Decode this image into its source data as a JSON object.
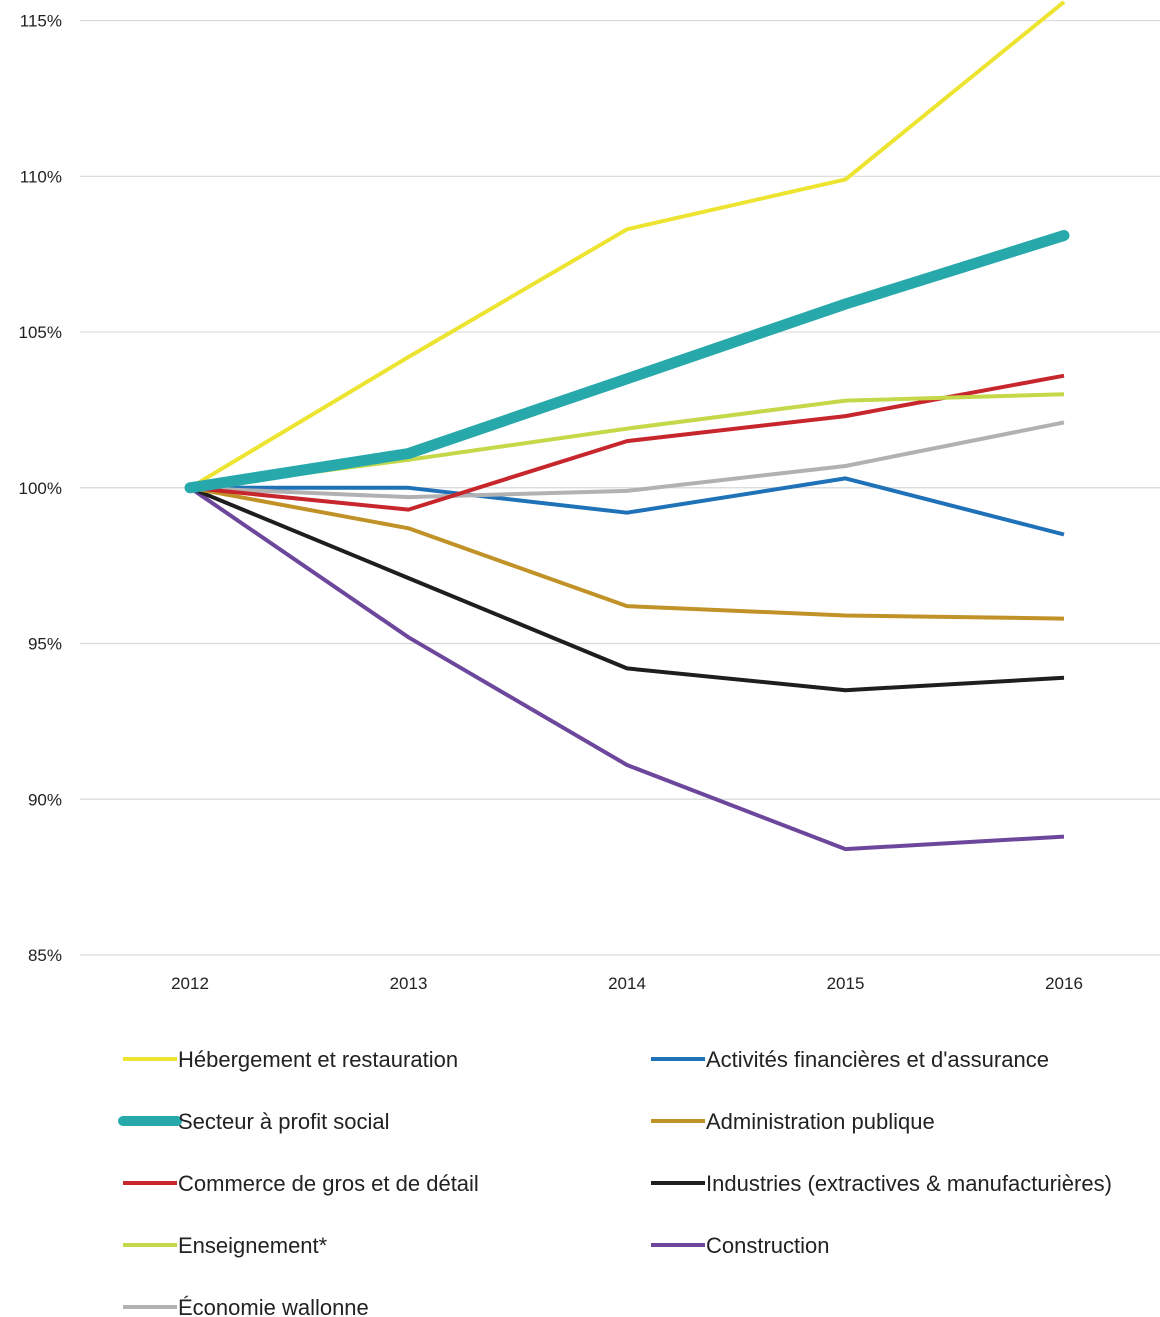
{
  "chart_data": {
    "type": "line",
    "title": "",
    "xlabel": "",
    "ylabel": "",
    "x": [
      "2012",
      "2013",
      "2014",
      "2015",
      "2016"
    ],
    "ylim": [
      85,
      115.5
    ],
    "yticks": [
      85,
      90,
      95,
      100,
      105,
      110,
      115
    ],
    "ytick_labels": [
      "85%",
      "90%",
      "95%",
      "100%",
      "105%",
      "110%",
      "115%"
    ],
    "grid": "horizontal",
    "legend_position": "bottom",
    "series": [
      {
        "name": "Hébergement et restauration",
        "color": "#ede431",
        "width": "normal",
        "values": [
          100,
          104.2,
          108.3,
          109.9,
          115.6
        ]
      },
      {
        "name": "Activités financières et d'assurance",
        "color": "#1f72b8",
        "width": "normal",
        "values": [
          100,
          100.0,
          99.2,
          100.3,
          98.5
        ]
      },
      {
        "name": "Secteur à profit social",
        "color": "#27a9ac",
        "width": "thick",
        "values": [
          100,
          101.1,
          103.5,
          105.9,
          108.1
        ]
      },
      {
        "name": "Administration publique",
        "color": "#c09228",
        "width": "normal",
        "values": [
          100,
          98.7,
          96.2,
          95.9,
          95.8
        ]
      },
      {
        "name": "Commerce de gros et de détail",
        "color": "#c7272c",
        "width": "normal",
        "values": [
          100,
          99.3,
          101.5,
          102.3,
          103.6
        ]
      },
      {
        "name": "Industries (extractives & manufacturières)",
        "color": "#1e1e1e",
        "width": "normal",
        "values": [
          100,
          97.1,
          94.2,
          93.5,
          93.9
        ]
      },
      {
        "name": "Enseignement*",
        "color": "#c5d84a",
        "width": "normal",
        "values": [
          100,
          100.9,
          101.9,
          102.8,
          103.0
        ]
      },
      {
        "name": "Construction",
        "color": "#6d479c",
        "width": "normal",
        "values": [
          100,
          95.2,
          91.1,
          88.4,
          88.8
        ]
      },
      {
        "name": "Économie wallonne",
        "color": "#b1b1b3",
        "width": "normal",
        "values": [
          100,
          99.7,
          99.9,
          100.7,
          102.1
        ]
      }
    ]
  }
}
